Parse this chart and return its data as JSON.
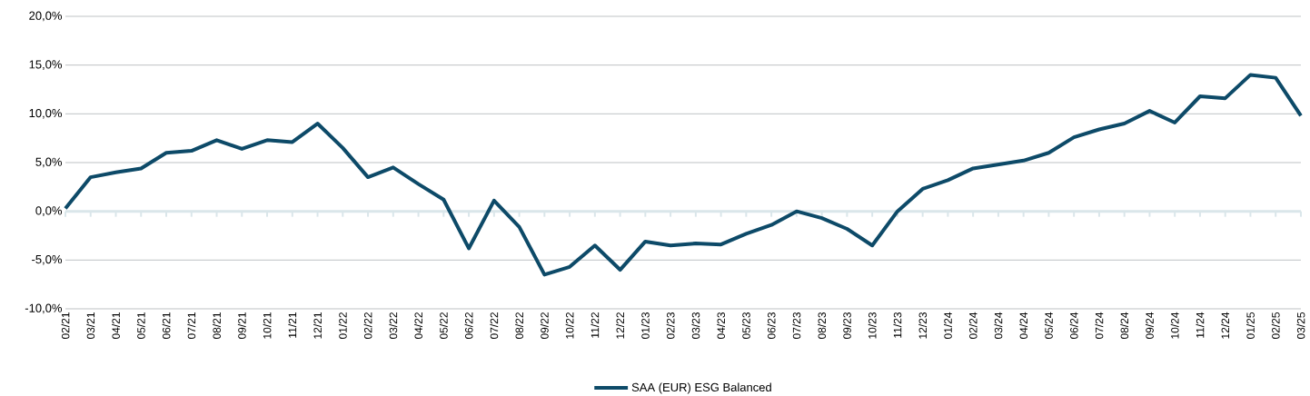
{
  "chart_data": {
    "type": "line",
    "categories": [
      "02/21",
      "03/21",
      "04/21",
      "05/21",
      "06/21",
      "07/21",
      "08/21",
      "09/21",
      "10/21",
      "11/21",
      "12/21",
      "01/22",
      "02/22",
      "03/22",
      "04/22",
      "05/22",
      "06/22",
      "07/22",
      "08/22",
      "09/22",
      "10/22",
      "11/22",
      "12/22",
      "01/23",
      "02/23",
      "03/23",
      "04/23",
      "05/23",
      "06/23",
      "07/23",
      "08/23",
      "09/23",
      "10/23",
      "11/23",
      "12/23",
      "01/24",
      "02/24",
      "03/24",
      "04/24",
      "05/24",
      "06/24",
      "07/24",
      "08/24",
      "09/24",
      "10/24",
      "11/24",
      "12/24",
      "01/25",
      "02/25",
      "03/25"
    ],
    "series": [
      {
        "name": "SAA (EUR) ESG Balanced",
        "color": "#0d4a68",
        "values": [
          0.3,
          3.5,
          4.0,
          4.4,
          6.0,
          6.2,
          7.3,
          6.4,
          7.3,
          7.1,
          9.0,
          6.5,
          3.5,
          4.5,
          2.8,
          1.2,
          -3.8,
          1.1,
          -1.6,
          -6.5,
          -5.7,
          -3.5,
          -6.0,
          -3.1,
          -3.5,
          -3.3,
          -3.4,
          -2.3,
          -1.4,
          0.0,
          -0.7,
          -1.8,
          -3.5,
          0.0,
          2.3,
          3.2,
          4.4,
          4.8,
          5.2,
          6.0,
          7.6,
          8.4,
          9.0,
          10.3,
          9.1,
          11.8,
          11.6,
          14.0,
          13.7,
          9.8
        ]
      }
    ],
    "ylim": [
      -10,
      20
    ],
    "yticks": [
      {
        "value": -10,
        "label": "-10,0%"
      },
      {
        "value": -5,
        "label": "-5,0%"
      },
      {
        "value": 0,
        "label": "0,0%"
      },
      {
        "value": 5,
        "label": "5,0%"
      },
      {
        "value": 10,
        "label": "10,0%"
      },
      {
        "value": 15,
        "label": "15,0%"
      },
      {
        "value": 20,
        "label": "20,0%"
      }
    ],
    "grid": "y",
    "legend": "bottom",
    "marker": "none",
    "line_style": "solid"
  }
}
